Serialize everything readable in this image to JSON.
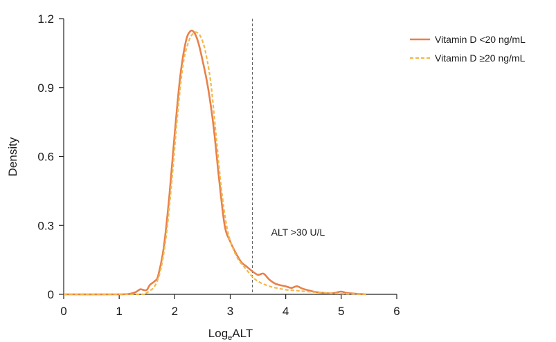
{
  "chart_data": {
    "type": "line",
    "xlabel": "Log",
    "xlabel_sub": "e",
    "xlabel_suffix": "ALT",
    "ylabel": "Density",
    "xlim": [
      0,
      6
    ],
    "ylim": [
      0,
      1.2
    ],
    "x_ticks": [
      0,
      1,
      2,
      3,
      4,
      5,
      6
    ],
    "x_tick_labels": [
      "0",
      "1",
      "2",
      "3",
      "4",
      "5",
      "6"
    ],
    "y_ticks": [
      0,
      0.3,
      0.6,
      0.9,
      1.2
    ],
    "y_tick_labels": [
      "0",
      "0.3",
      "0.6",
      "0.9",
      "1.2"
    ],
    "grid": false,
    "legend_position": "top-right",
    "reference_line": {
      "x": 3.4,
      "label": "ALT >30 U/L"
    },
    "series": [
      {
        "name": "Vitamin D <20 ng/mL",
        "color": "#e8804a",
        "style": "solid",
        "x": [
          0,
          1.0,
          1.2,
          1.3,
          1.38,
          1.45,
          1.5,
          1.55,
          1.6,
          1.65,
          1.7,
          1.8,
          1.9,
          2.0,
          2.1,
          2.2,
          2.28,
          2.35,
          2.42,
          2.5,
          2.6,
          2.7,
          2.8,
          2.9,
          3.0,
          3.1,
          3.2,
          3.3,
          3.4,
          3.5,
          3.6,
          3.7,
          3.8,
          3.9,
          4.0,
          4.1,
          4.2,
          4.3,
          4.4,
          4.5,
          4.6,
          4.7,
          4.8,
          4.9,
          5.0,
          5.1,
          5.2,
          5.3,
          5.45
        ],
        "y": [
          0,
          0,
          0.003,
          0.01,
          0.022,
          0.018,
          0.02,
          0.04,
          0.05,
          0.06,
          0.08,
          0.2,
          0.42,
          0.7,
          0.95,
          1.1,
          1.145,
          1.14,
          1.1,
          1.02,
          0.9,
          0.73,
          0.5,
          0.3,
          0.23,
          0.18,
          0.14,
          0.12,
          0.1,
          0.085,
          0.09,
          0.065,
          0.048,
          0.04,
          0.035,
          0.028,
          0.035,
          0.025,
          0.018,
          0.012,
          0.008,
          0.006,
          0.004,
          0.007,
          0.012,
          0.006,
          0.004,
          0.002,
          0.0
        ]
      },
      {
        "name": "Vitamin D ≥20 ng/mL",
        "color": "#f2b84b",
        "style": "dashed",
        "x": [
          0,
          1.3,
          1.45,
          1.55,
          1.65,
          1.75,
          1.85,
          1.95,
          2.05,
          2.15,
          2.25,
          2.33,
          2.4,
          2.47,
          2.55,
          2.65,
          2.75,
          2.85,
          2.95,
          3.05,
          3.15,
          3.25,
          3.35,
          3.45,
          3.55,
          3.65,
          3.75,
          3.85,
          4.0,
          4.2,
          4.4,
          4.6,
          4.8,
          5.0,
          5.2,
          5.45
        ],
        "y": [
          0,
          0,
          0.003,
          0.015,
          0.04,
          0.11,
          0.26,
          0.5,
          0.78,
          1.0,
          1.1,
          1.135,
          1.14,
          1.12,
          1.06,
          0.92,
          0.68,
          0.44,
          0.28,
          0.2,
          0.15,
          0.12,
          0.09,
          0.065,
          0.05,
          0.04,
          0.032,
          0.027,
          0.02,
          0.016,
          0.012,
          0.008,
          0.005,
          0.003,
          0.002,
          0.0
        ]
      }
    ]
  }
}
